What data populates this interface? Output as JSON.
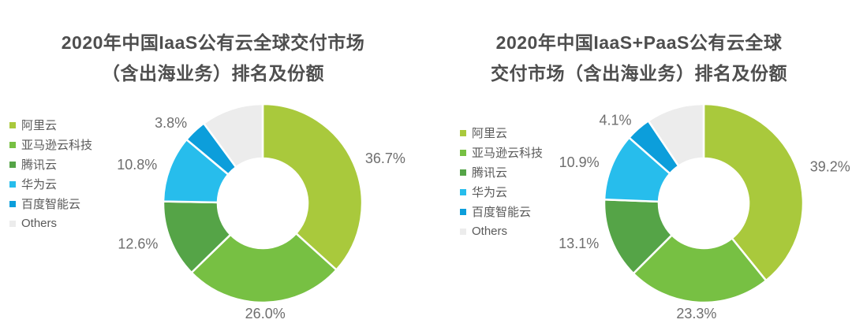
{
  "page": {
    "background": "#ffffff",
    "title_color": "#4e4e4e",
    "legend_text_color": "#595959",
    "label_text_color": "#6e6e6e"
  },
  "chart_data": [
    {
      "type": "pie",
      "variant": "donut",
      "title": "2020年中国IaaS公有云全球交付市场（含出海业务）排名及份额",
      "title_lines": [
        "2020年中国IaaS公有云全球交付市场",
        "（含出海业务）排名及份额"
      ],
      "legend_position": "left",
      "legend": [
        "阿里云",
        "亚马逊云科技",
        "腾讯云",
        "华为云",
        "百度智能云",
        "Others"
      ],
      "start_angle": "top",
      "direction": "clockwise",
      "inner_radius_ratio": 0.45,
      "series": [
        {
          "name": "阿里云",
          "value": 36.7,
          "label": "36.7%",
          "color": "#a9c93c"
        },
        {
          "name": "亚马逊云科技",
          "value": 26.0,
          "label": "26.0%",
          "color": "#77c043"
        },
        {
          "name": "腾讯云",
          "value": 12.6,
          "label": "12.6%",
          "color": "#55a447"
        },
        {
          "name": "华为云",
          "value": 10.8,
          "label": "10.8%",
          "color": "#27bdec"
        },
        {
          "name": "百度智能云",
          "value": 3.8,
          "label": "3.8%",
          "color": "#0c9edb"
        },
        {
          "name": "Others",
          "value": 10.1,
          "label": "",
          "color": "#ececec"
        }
      ]
    },
    {
      "type": "pie",
      "variant": "donut",
      "title": "2020年中国IaaS+PaaS公有云全球交付市场（含出海业务）排名及份额",
      "title_lines": [
        "2020年中国IaaS+PaaS公有云全球",
        "交付市场（含出海业务）排名及份额"
      ],
      "legend_position": "left",
      "legend": [
        "阿里云",
        "亚马逊云科技",
        "腾讯云",
        "华为云",
        "百度智能云",
        "Others"
      ],
      "start_angle": "top",
      "direction": "clockwise",
      "inner_radius_ratio": 0.45,
      "series": [
        {
          "name": "阿里云",
          "value": 39.2,
          "label": "39.2%",
          "color": "#a9c93c"
        },
        {
          "name": "亚马逊云科技",
          "value": 23.3,
          "label": "23.3%",
          "color": "#77c043"
        },
        {
          "name": "腾讯云",
          "value": 13.1,
          "label": "13.1%",
          "color": "#55a447"
        },
        {
          "name": "华为云",
          "value": 10.9,
          "label": "10.9%",
          "color": "#27bdec"
        },
        {
          "name": "百度智能云",
          "value": 4.1,
          "label": "4.1%",
          "color": "#0c9edb"
        },
        {
          "name": "Others",
          "value": 9.4,
          "label": "",
          "color": "#ececec"
        }
      ]
    }
  ]
}
